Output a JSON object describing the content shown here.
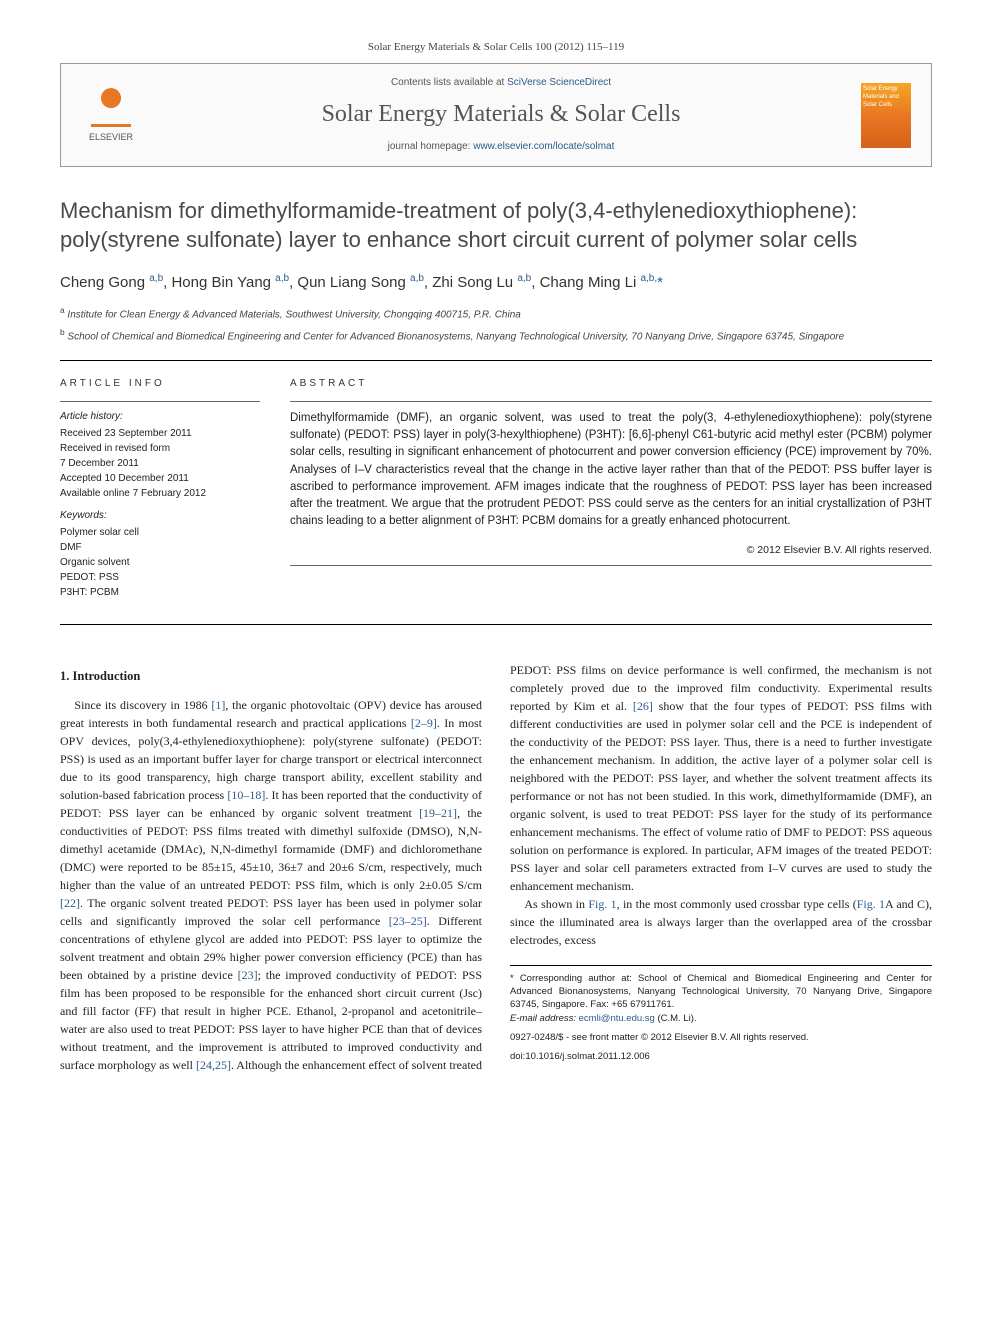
{
  "journal_ref": "Solar Energy Materials & Solar Cells 100 (2012) 115–119",
  "header": {
    "contents_pre": "Contents lists available at ",
    "contents_link": "SciVerse ScienceDirect",
    "journal_name": "Solar Energy Materials & Solar Cells",
    "homepage_pre": "journal homepage: ",
    "homepage_link": "www.elsevier.com/locate/solmat",
    "elsevier": "ELSEVIER",
    "cover_text": "Solar Energy Materials and Solar Cells"
  },
  "title": "Mechanism for dimethylformamide-treatment of poly(3,4-ethylenedioxythiophene): poly(styrene sulfonate) layer to enhance short circuit current of polymer solar cells",
  "authors_html": "Cheng Gong <sup>a,b</sup>, Hong Bin Yang <sup>a,b</sup>, Qun Liang Song <sup>a,b</sup>, Zhi Song Lu <sup>a,b</sup>, Chang Ming Li <sup>a,b,</sup><span class='star'>*</span>",
  "aff_a_sup": "a",
  "aff_a": "Institute for Clean Energy & Advanced Materials, Southwest University, Chongqing 400715, P.R. China",
  "aff_b_sup": "b",
  "aff_b": "School of Chemical and Biomedical Engineering and Center for Advanced Bionanosystems, Nanyang Technological University, 70 Nanyang Drive, Singapore 63745, Singapore",
  "article_info": {
    "head": "ARTICLE INFO",
    "history_label": "Article history:",
    "history": "Received 23 September 2011\nReceived in revised form\n7 December 2011\nAccepted 10 December 2011\nAvailable online 7 February 2012",
    "keywords_label": "Keywords:",
    "keywords": "Polymer solar cell\nDMF\nOrganic solvent\nPEDOT: PSS\nP3HT: PCBM"
  },
  "abstract": {
    "head": "ABSTRACT",
    "body": "Dimethylformamide (DMF), an organic solvent, was used to treat the poly(3, 4-ethylenedioxythiophene): poly(styrene sulfonate) (PEDOT: PSS) layer in poly(3-hexylthiophene) (P3HT): [6,6]-phenyl C61-butyric acid methyl ester (PCBM) polymer solar cells, resulting in significant enhancement of photocurrent and power conversion efficiency (PCE) improvement by 70%. Analyses of I–V characteristics reveal that the change in the active layer rather than that of the PEDOT: PSS buffer layer is ascribed to performance improvement. AFM images indicate that the roughness of PEDOT: PSS layer has been increased after the treatment. We argue that the protrudent PEDOT: PSS could serve as the centers for an initial crystallization of P3HT chains leading to a better alignment of P3HT: PCBM domains for a greatly enhanced photocurrent.",
    "copyright": "© 2012 Elsevier B.V. All rights reserved."
  },
  "intro_head": "1. Introduction",
  "intro_p1_pre": "Since its discovery in 1986 ",
  "intro_p1_ref1": "[1]",
  "intro_p1_a": ", the organic photovoltaic (OPV) device has aroused great interests in both fundamental research and practical applications ",
  "intro_p1_ref2": "[2–9]",
  "intro_p1_b": ". In most OPV devices, poly(3,4-ethylenedioxythiophene): poly(styrene sulfonate) (PEDOT: PSS) is used as an important buffer layer for charge transport or electrical interconnect due to its good transparency, high charge transport ability, excellent stability and solution-based fabrication process ",
  "intro_p1_ref3": "[10–18]",
  "intro_p1_c": ". It has been reported that the conductivity of PEDOT: PSS layer can be enhanced by organic solvent treatment ",
  "intro_p1_ref4": "[19–21]",
  "intro_p1_d": ", the conductivities of PEDOT: PSS films treated with dimethyl sulfoxide (DMSO), N,N-dimethyl acetamide (DMAc), N,N-dimethyl formamide (DMF) and dichloromethane (DMC) were reported to be 85±15, 45±10, 36±7 and 20±6 S/cm, respectively, much higher than the value of an untreated PEDOT: PSS film, which is only 2±0.05 S/cm ",
  "intro_p1_ref5": "[22]",
  "intro_p1_e": ". The organic solvent treated PEDOT: PSS layer has been used in polymer solar cells and significantly improved the solar cell performance ",
  "intro_p1_ref6": "[23–25]",
  "intro_p1_f": ". Different concentrations of ethylene glycol are added into PEDOT: PSS layer to optimize the solvent treatment and obtain 29% higher power conversion efficiency (PCE) than has been obtained by",
  "intro_p2_a": "a pristine device ",
  "intro_p2_ref1": "[23]",
  "intro_p2_b": "; the improved conductivity of PEDOT: PSS film has been proposed to be responsible for the enhanced short circuit current (Jsc) and fill factor (FF) that result in higher PCE. Ethanol, 2-propanol and acetonitrile–water are also used to treat PEDOT: PSS layer to have higher PCE than that of devices without treatment, and the improvement is attributed to improved conductivity and surface morphology as well ",
  "intro_p2_ref2": "[24,25]",
  "intro_p2_c": ". Although the enhancement effect of solvent treated PEDOT: PSS films on device performance is well confirmed, the mechanism is not completely proved due to the improved film conductivity. Experimental results reported by Kim et al. ",
  "intro_p2_ref3": "[26]",
  "intro_p2_d": " show that the four types of PEDOT: PSS films with different conductivities are used in polymer solar cell and the PCE is independent of the conductivity of the PEDOT: PSS layer. Thus, there is a need to further investigate the enhancement mechanism. In addition, the active layer of a polymer solar cell is neighbored with the PEDOT: PSS layer, and whether the solvent treatment affects its performance or not has not been studied. In this work, dimethylformamide (DMF), an organic solvent, is used to treat PEDOT: PSS layer for the study of its performance enhancement mechanisms. The effect of volume ratio of DMF to PEDOT: PSS aqueous solution on performance is explored. In particular, AFM images of the treated PEDOT: PSS layer and solar cell parameters extracted from I–V curves are used to study the enhancement mechanism.",
  "intro_p3_a": "As shown in ",
  "intro_p3_fig1": "Fig. 1",
  "intro_p3_b": ", in the most commonly used crossbar type cells (",
  "intro_p3_fig2": "Fig. 1",
  "intro_p3_c": "A and C), since the illuminated area is always larger than the overlapped area of the crossbar electrodes, excess",
  "footer": {
    "corr": "* Corresponding author at: School of Chemical and Biomedical Engineering and Center for Advanced Bionanosystems, Nanyang Technological University, 70 Nanyang Drive, Singapore 63745, Singapore. Fax: +65 67911761.",
    "email_label": "E-mail address: ",
    "email": "ecmli@ntu.edu.sg",
    "email_tail": " (C.M. Li).",
    "doi_line": "0927-0248/$ - see front matter © 2012 Elsevier B.V. All rights reserved.",
    "doi": "doi:10.1016/j.solmat.2011.12.006"
  }
}
